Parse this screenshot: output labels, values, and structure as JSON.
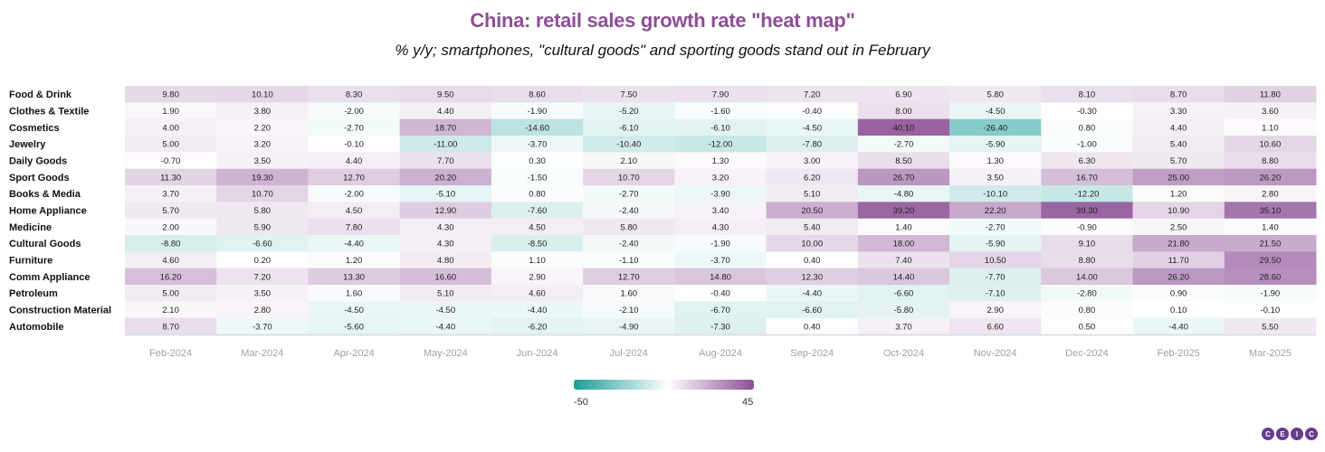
{
  "chart_data": {
    "type": "heatmap",
    "title": "China: retail sales growth rate \"heat map\"",
    "subtitle": "% y/y; smartphones, \"cultural goods\" and sporting goods stand out in February",
    "xlabel": "",
    "ylabel": "",
    "x": [
      "Feb-2024",
      "Mar-2024",
      "Apr-2024",
      "May-2024",
      "Jun-2024",
      "Jul-2024",
      "Aug-2024",
      "Sep-2024",
      "Oct-2024",
      "Nov-2024",
      "Dec-2024",
      "Feb-2025",
      "Mar-2025"
    ],
    "y": [
      "Food & Drink",
      "Clothes & Textile",
      "Cosmetics",
      "Jewelry",
      "Daily Goods",
      "Sport Goods",
      "Books & Media",
      "Home Appliance",
      "Medicine",
      "Cultural Goods",
      "Furniture",
      "Comm Appliance",
      "Petroleum",
      "Construction Material",
      "Automobile"
    ],
    "values": [
      [
        9.8,
        10.1,
        8.3,
        9.5,
        8.6,
        7.5,
        7.9,
        7.2,
        6.9,
        5.8,
        8.1,
        8.7,
        11.8
      ],
      [
        1.9,
        3.8,
        -2.0,
        4.4,
        -1.9,
        -5.2,
        -1.6,
        -0.4,
        8.0,
        -4.5,
        -0.3,
        3.3,
        3.6
      ],
      [
        4.0,
        2.2,
        -2.7,
        18.7,
        -14.6,
        -6.1,
        -6.1,
        -4.5,
        40.1,
        -26.4,
        0.8,
        4.4,
        1.1
      ],
      [
        5.0,
        3.2,
        -0.1,
        -11.0,
        -3.7,
        -10.4,
        -12.0,
        -7.8,
        -2.7,
        -5.9,
        -1.0,
        5.4,
        10.6
      ],
      [
        -0.7,
        3.5,
        4.4,
        7.7,
        0.3,
        2.1,
        1.3,
        3.0,
        8.5,
        1.3,
        6.3,
        5.7,
        8.8
      ],
      [
        11.3,
        19.3,
        12.7,
        20.2,
        -1.5,
        10.7,
        3.2,
        6.2,
        26.7,
        3.5,
        16.7,
        25.0,
        26.2
      ],
      [
        3.7,
        10.7,
        -2.0,
        -5.1,
        0.8,
        -2.7,
        -3.9,
        5.1,
        -4.8,
        -10.1,
        -12.2,
        1.2,
        2.8
      ],
      [
        5.7,
        5.8,
        4.5,
        12.9,
        -7.6,
        -2.4,
        3.4,
        20.5,
        39.2,
        22.2,
        39.3,
        10.9,
        35.1
      ],
      [
        2.0,
        5.9,
        7.8,
        4.3,
        4.5,
        5.8,
        4.3,
        5.4,
        1.4,
        -2.7,
        -0.9,
        2.5,
        1.4
      ],
      [
        -8.8,
        -6.6,
        -4.4,
        4.3,
        -8.5,
        -2.4,
        -1.9,
        10.0,
        18.0,
        -5.9,
        9.1,
        21.8,
        21.5
      ],
      [
        4.6,
        0.2,
        1.2,
        4.8,
        1.1,
        -1.1,
        -3.7,
        0.4,
        7.4,
        10.5,
        8.8,
        11.7,
        29.5
      ],
      [
        16.2,
        7.2,
        13.3,
        16.6,
        2.9,
        12.7,
        14.8,
        12.3,
        14.4,
        -7.7,
        14.0,
        26.2,
        28.6
      ],
      [
        5.0,
        3.5,
        1.6,
        5.1,
        4.6,
        1.6,
        -0.4,
        -4.4,
        -6.6,
        -7.1,
        -2.8,
        0.9,
        -1.9
      ],
      [
        2.1,
        2.8,
        -4.5,
        -4.5,
        -4.4,
        -2.1,
        -6.7,
        -6.6,
        -5.8,
        2.9,
        0.8,
        0.1,
        -0.1
      ],
      [
        8.7,
        -3.7,
        -5.6,
        -4.4,
        -6.2,
        -4.9,
        -7.3,
        0.4,
        3.7,
        6.6,
        0.5,
        -4.4,
        5.5
      ]
    ],
    "color_scale": {
      "min": -50,
      "max": 45,
      "min_color": "#1a9e9a",
      "mid_color": "#ffffff",
      "max_color": "#8c4f96"
    },
    "legend": {
      "position": "bottom-center",
      "min_label": "-50",
      "max_label": "45"
    },
    "grid": false
  },
  "branding": {
    "logo_letters": [
      "C",
      "E",
      "I",
      "C"
    ],
    "logo_color": "#6a3a8f"
  }
}
